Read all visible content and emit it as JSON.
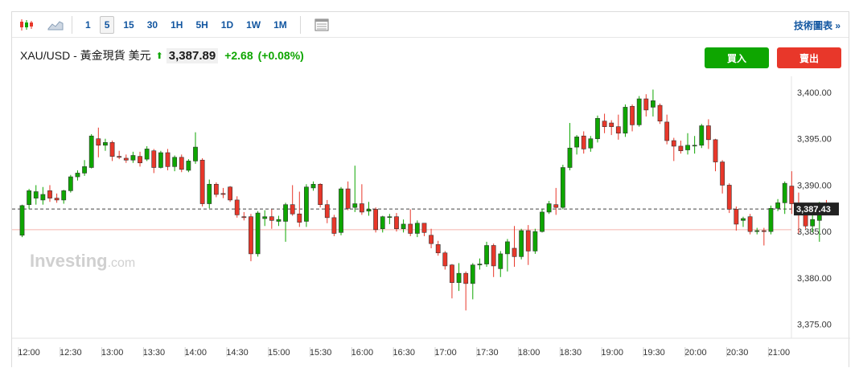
{
  "toolbar": {
    "chart_icon": "candlestick-icon",
    "area_icon": "area-chart-icon",
    "timeframes": [
      "1",
      "5",
      "15",
      "30",
      "1H",
      "5H",
      "1D",
      "1W",
      "1M"
    ],
    "active_timeframe": "5",
    "table_icon": "table-icon",
    "advanced_link": "技術圖表 »"
  },
  "quote": {
    "title": "XAU/USD - 黃金現貨 美元",
    "arrow": "⬆",
    "price": "3,387.89",
    "change": "+2.68",
    "percent": "(+0.08%)"
  },
  "buttons": {
    "buy": "買入",
    "sell": "賣出"
  },
  "watermark": {
    "brand": "Investing",
    "suffix": ".com"
  },
  "colors": {
    "up": "#0ea600",
    "down": "#e8372a",
    "accent": "#1256a0",
    "last_label_bg": "#222222"
  },
  "chart_data": {
    "type": "candlestick",
    "y_ticks": [
      "3,400.00",
      "3,395.00",
      "3,390.00",
      "3,385.00",
      "3,380.00",
      "3,375.00"
    ],
    "y_tick_values": [
      3400,
      3395,
      3390,
      3385,
      3380,
      3375
    ],
    "ylim": [
      3373.5,
      3401.9
    ],
    "x_ticks": [
      "12:00",
      "12:30",
      "13:00",
      "13:30",
      "14:00",
      "14:30",
      "15:00",
      "15:30",
      "16:00",
      "16:30",
      "17:00",
      "17:30",
      "18:00",
      "18:30",
      "19:00",
      "19:30",
      "20:00",
      "20:30",
      "21:00"
    ],
    "last_price_label": "3,387.43",
    "last_price": 3387.43,
    "reference_price": 3385.2,
    "candles": [
      [
        3384.6,
        3387.8,
        3384.4,
        3387.9
      ],
      [
        3387.9,
        3389.4,
        3387.4,
        3389.6
      ],
      [
        3388.6,
        3389.3,
        3387.9,
        3390.0
      ],
      [
        3388.4,
        3389.0,
        3387.9,
        3389.8
      ],
      [
        3389.4,
        3388.6,
        3388.2,
        3390.0
      ],
      [
        3388.6,
        3388.4,
        3388.1,
        3389.1
      ],
      [
        3388.4,
        3389.4,
        3388.0,
        3389.5
      ],
      [
        3389.4,
        3390.9,
        3389.2,
        3391.1
      ],
      [
        3390.9,
        3391.3,
        3390.5,
        3391.6
      ],
      [
        3391.3,
        3392.0,
        3391.0,
        3392.7
      ],
      [
        3391.9,
        3395.3,
        3391.8,
        3395.5
      ],
      [
        3395.0,
        3394.3,
        3393.0,
        3396.2
      ],
      [
        3394.3,
        3394.6,
        3393.7,
        3395.0
      ],
      [
        3394.6,
        3393.1,
        3392.6,
        3394.8
      ],
      [
        3393.1,
        3393.0,
        3392.8,
        3393.7
      ],
      [
        3392.9,
        3392.7,
        3392.4,
        3393.3
      ],
      [
        3392.7,
        3393.2,
        3392.4,
        3393.6
      ],
      [
        3393.1,
        3392.4,
        3392.0,
        3393.6
      ],
      [
        3392.8,
        3393.9,
        3392.6,
        3394.2
      ],
      [
        3393.7,
        3391.9,
        3391.3,
        3393.9
      ],
      [
        3391.9,
        3393.5,
        3391.8,
        3393.7
      ],
      [
        3393.5,
        3392.0,
        3391.6,
        3393.9
      ],
      [
        3392.0,
        3393.0,
        3391.5,
        3393.2
      ],
      [
        3393.0,
        3391.7,
        3391.4,
        3393.3
      ],
      [
        3391.6,
        3392.6,
        3391.4,
        3392.8
      ],
      [
        3392.6,
        3394.1,
        3392.3,
        3395.7
      ],
      [
        3392.7,
        3388.0,
        3387.7,
        3392.9
      ],
      [
        3388.0,
        3390.1,
        3387.5,
        3390.6
      ],
      [
        3390.1,
        3389.0,
        3388.7,
        3390.3
      ],
      [
        3389.1,
        3389.0,
        3388.6,
        3389.7
      ],
      [
        3389.8,
        3388.4,
        3388.2,
        3389.9
      ],
      [
        3388.4,
        3386.8,
        3386.5,
        3388.8
      ],
      [
        3386.6,
        3386.5,
        3386.2,
        3387.1
      ],
      [
        3386.6,
        3382.6,
        3381.8,
        3386.9
      ],
      [
        3382.6,
        3387.0,
        3382.3,
        3387.2
      ],
      [
        3386.4,
        3386.6,
        3385.6,
        3387.3
      ],
      [
        3386.6,
        3386.2,
        3385.3,
        3387.4
      ],
      [
        3386.1,
        3386.3,
        3385.6,
        3386.7
      ],
      [
        3386.1,
        3387.9,
        3383.9,
        3388.1
      ],
      [
        3387.9,
        3386.9,
        3386.7,
        3390.0
      ],
      [
        3386.9,
        3386.0,
        3385.5,
        3389.3
      ],
      [
        3386.1,
        3389.8,
        3385.5,
        3390.1
      ],
      [
        3389.7,
        3390.1,
        3389.4,
        3390.4
      ],
      [
        3390.1,
        3387.9,
        3387.6,
        3390.2
      ],
      [
        3387.9,
        3386.5,
        3385.9,
        3388.4
      ],
      [
        3386.5,
        3384.8,
        3384.5,
        3386.8
      ],
      [
        3384.9,
        3389.6,
        3384.6,
        3389.8
      ],
      [
        3389.6,
        3387.5,
        3387.3,
        3390.4
      ],
      [
        3387.6,
        3388.0,
        3387.1,
        3392.1
      ],
      [
        3388.0,
        3387.1,
        3386.8,
        3390.1
      ],
      [
        3387.2,
        3387.4,
        3386.7,
        3388.2
      ],
      [
        3387.4,
        3385.2,
        3384.9,
        3387.6
      ],
      [
        3385.3,
        3386.6,
        3384.9,
        3386.7
      ],
      [
        3386.6,
        3386.6,
        3385.8,
        3386.9
      ],
      [
        3386.6,
        3385.3,
        3385.0,
        3387.0
      ],
      [
        3385.3,
        3385.8,
        3384.9,
        3386.3
      ],
      [
        3385.8,
        3384.8,
        3384.5,
        3387.4
      ],
      [
        3384.8,
        3385.9,
        3384.4,
        3386.2
      ],
      [
        3385.9,
        3384.9,
        3384.5,
        3385.7
      ],
      [
        3384.6,
        3383.7,
        3383.2,
        3385.3
      ],
      [
        3383.6,
        3382.7,
        3382.4,
        3384.0
      ],
      [
        3382.7,
        3381.3,
        3380.9,
        3382.9
      ],
      [
        3381.4,
        3379.5,
        3377.8,
        3381.5
      ],
      [
        3379.5,
        3380.5,
        3378.6,
        3381.6
      ],
      [
        3380.5,
        3379.4,
        3376.5,
        3380.7
      ],
      [
        3379.4,
        3381.4,
        3377.7,
        3381.6
      ],
      [
        3381.4,
        3381.5,
        3380.9,
        3382.1
      ],
      [
        3381.5,
        3383.5,
        3381.2,
        3383.9
      ],
      [
        3383.5,
        3381.3,
        3380.1,
        3383.7
      ],
      [
        3381.0,
        3382.6,
        3380.1,
        3382.9
      ],
      [
        3382.6,
        3383.9,
        3380.7,
        3384.2
      ],
      [
        3383.2,
        3382.3,
        3381.2,
        3385.6
      ],
      [
        3382.3,
        3385.1,
        3382.0,
        3385.3
      ],
      [
        3385.1,
        3382.9,
        3381.4,
        3385.7
      ],
      [
        3382.9,
        3385.0,
        3382.6,
        3385.3
      ],
      [
        3385.0,
        3387.1,
        3384.9,
        3387.4
      ],
      [
        3387.1,
        3388.0,
        3386.9,
        3388.3
      ],
      [
        3387.9,
        3387.6,
        3386.8,
        3389.7
      ],
      [
        3387.6,
        3391.9,
        3387.4,
        3392.2
      ],
      [
        3391.9,
        3394.0,
        3391.6,
        3396.7
      ],
      [
        3394.1,
        3395.2,
        3393.3,
        3395.4
      ],
      [
        3395.3,
        3393.9,
        3393.4,
        3395.8
      ],
      [
        3394.0,
        3395.0,
        3393.6,
        3395.3
      ],
      [
        3395.0,
        3397.2,
        3394.6,
        3397.5
      ],
      [
        3396.9,
        3396.3,
        3395.6,
        3397.7
      ],
      [
        3396.7,
        3396.3,
        3395.4,
        3397.0
      ],
      [
        3396.3,
        3395.6,
        3394.9,
        3397.6
      ],
      [
        3395.6,
        3398.4,
        3395.2,
        3398.7
      ],
      [
        3398.5,
        3396.5,
        3395.8,
        3398.7
      ],
      [
        3396.5,
        3399.3,
        3396.3,
        3399.6
      ],
      [
        3399.3,
        3398.1,
        3397.4,
        3399.8
      ],
      [
        3398.4,
        3399.1,
        3397.4,
        3400.3
      ],
      [
        3398.6,
        3396.9,
        3396.6,
        3398.8
      ],
      [
        3396.8,
        3394.8,
        3394.4,
        3397.6
      ],
      [
        3394.8,
        3394.2,
        3392.6,
        3395.1
      ],
      [
        3394.2,
        3393.7,
        3393.4,
        3394.8
      ],
      [
        3393.8,
        3394.3,
        3393.3,
        3395.6
      ],
      [
        3394.3,
        3394.3,
        3393.4,
        3395.3
      ],
      [
        3394.3,
        3396.4,
        3394.0,
        3396.6
      ],
      [
        3396.4,
        3394.9,
        3393.9,
        3397.1
      ],
      [
        3394.9,
        3392.5,
        3391.5,
        3395.0
      ],
      [
        3392.5,
        3390.0,
        3389.1,
        3392.7
      ],
      [
        3390.0,
        3387.4,
        3387.0,
        3390.2
      ],
      [
        3387.4,
        3385.8,
        3385.1,
        3387.7
      ],
      [
        3386.2,
        3386.4,
        3385.5,
        3386.6
      ],
      [
        3386.6,
        3385.0,
        3384.7,
        3386.9
      ],
      [
        3385.0,
        3385.1,
        3384.7,
        3385.4
      ],
      [
        3385.1,
        3385.0,
        3383.5,
        3385.4
      ],
      [
        3385.0,
        3387.5,
        3384.7,
        3387.8
      ],
      [
        3387.5,
        3388.1,
        3387.2,
        3388.5
      ],
      [
        3388.1,
        3390.2,
        3386.9,
        3390.4
      ],
      [
        3389.9,
        3388.0,
        3386.9,
        3391.5
      ],
      [
        3388.0,
        3387.7,
        3384.8,
        3389.2
      ],
      [
        3387.7,
        3385.6,
        3385.3,
        3387.9
      ],
      [
        3385.6,
        3386.3,
        3384.9,
        3387.6
      ],
      [
        3386.2,
        3387.9,
        3383.9,
        3388.2
      ],
      [
        3387.9,
        3387.6,
        3387.3,
        3388.4
      ]
    ]
  }
}
